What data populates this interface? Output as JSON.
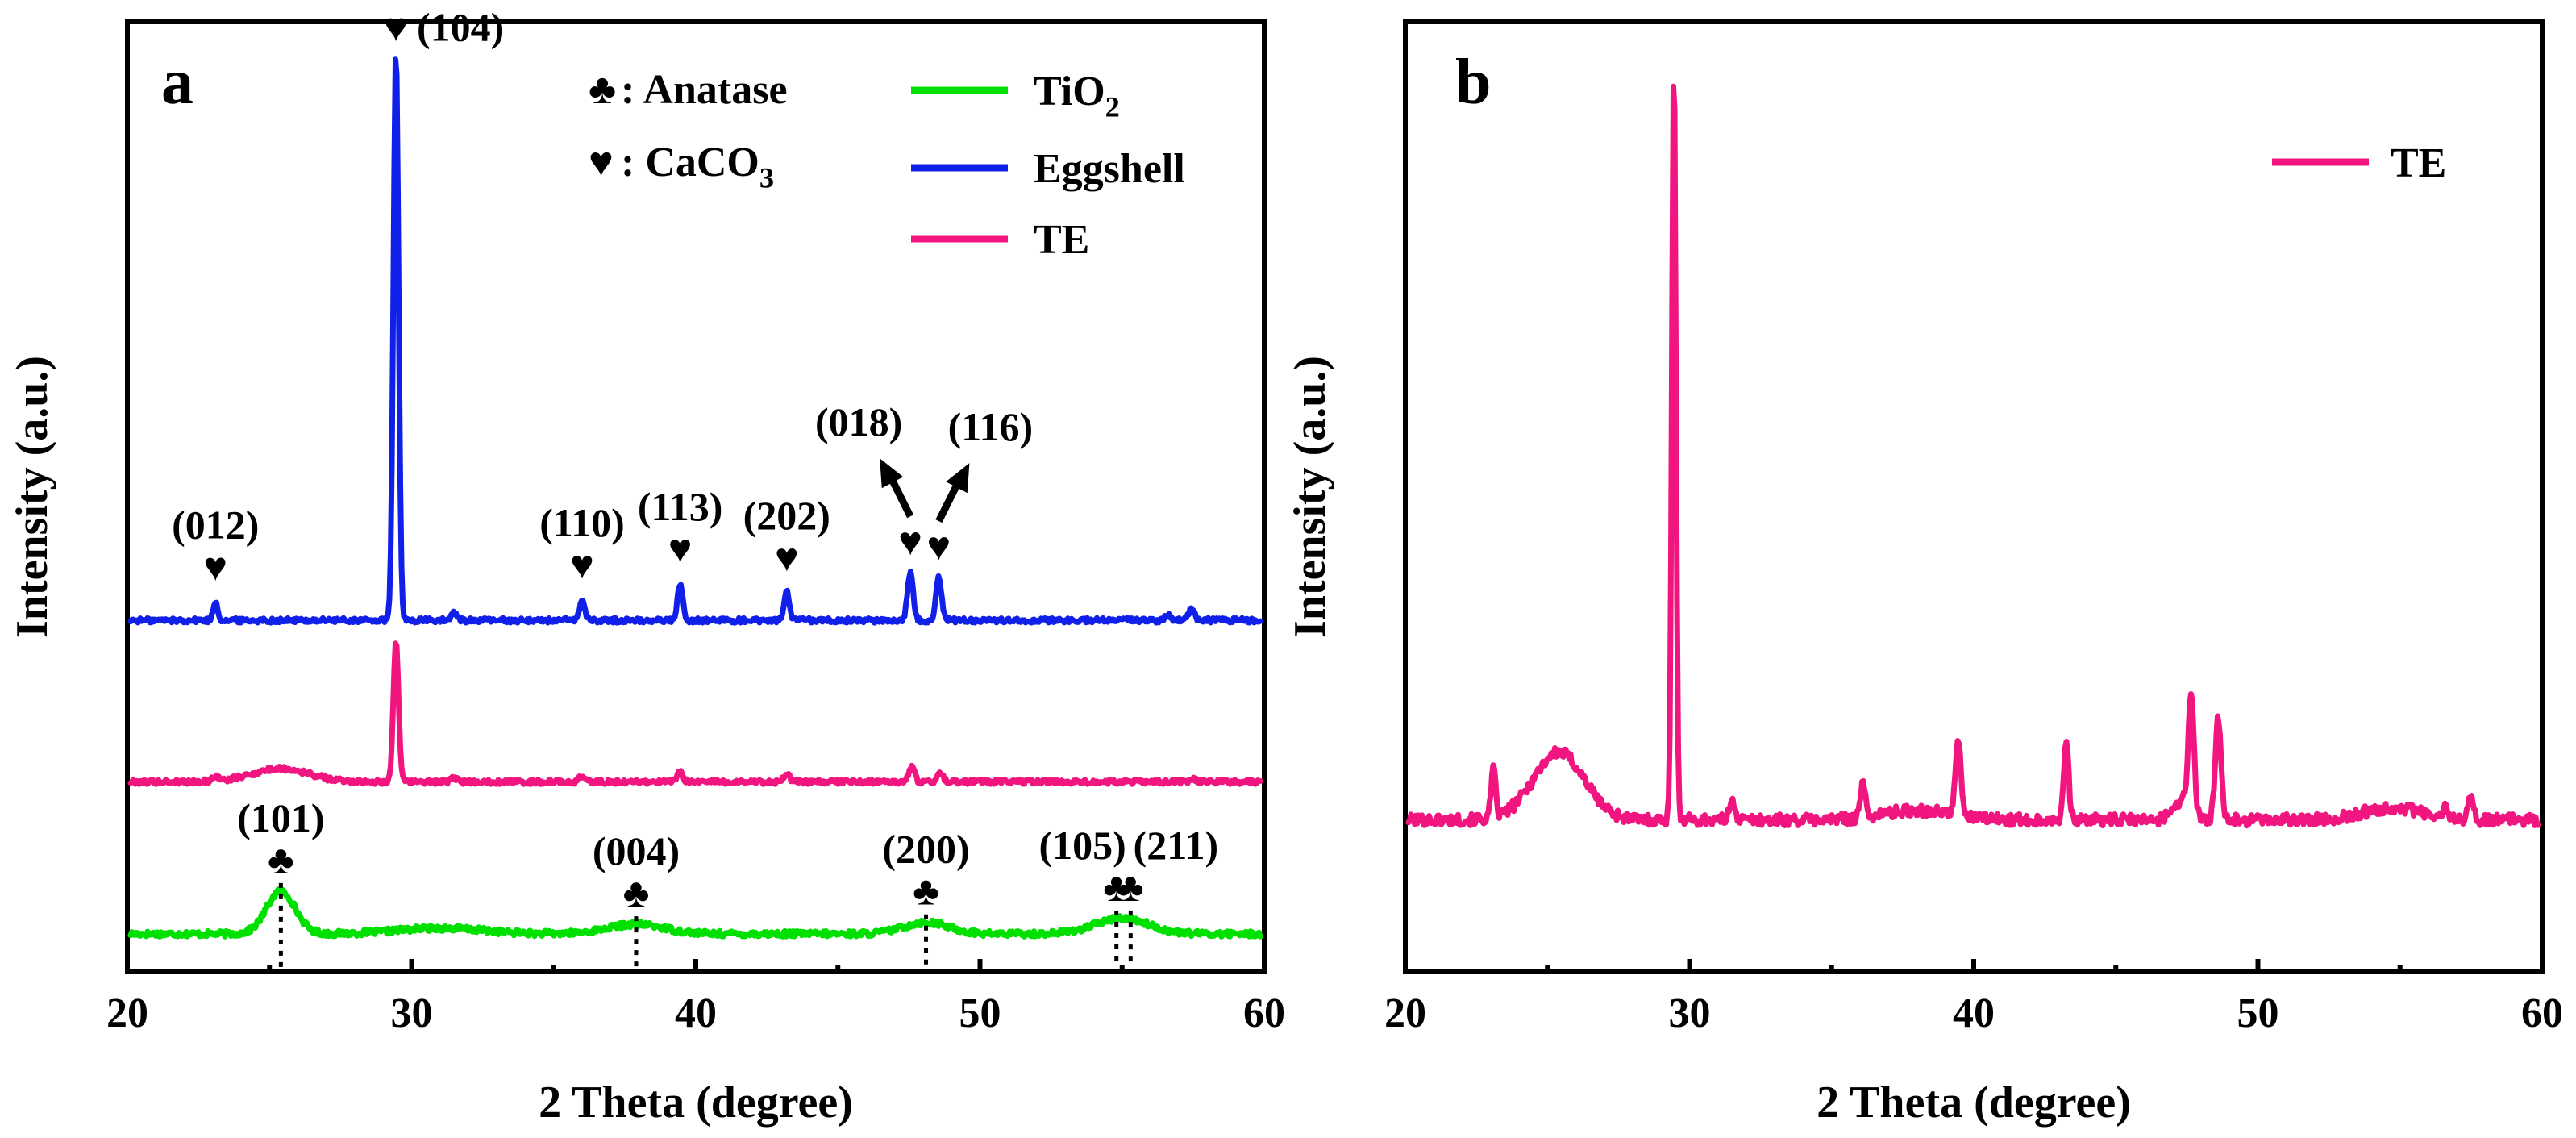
{
  "chart_data": [
    {
      "panel": "a",
      "type": "line",
      "xlabel": "2 Theta (degree)",
      "ylabel": "Intensity (a.u.)",
      "xlim": [
        20,
        60
      ],
      "xticks": [
        20,
        30,
        40,
        50,
        60
      ],
      "colors": {
        "TiO2": "#00e000",
        "Eggshell": "#1020e8",
        "TE": "#f0157f"
      },
      "legend": [
        {
          "sym": "♣",
          "text": ": Anatase"
        },
        {
          "sym": "♥",
          "text": ": CaCO",
          "sub": "3"
        }
      ],
      "series": [
        {
          "name": "TiO2",
          "label": "TiO",
          "label_sub": "2",
          "color": "#00e000",
          "baseline": 0.04,
          "noise": 0.003,
          "offset_hint": "bottom",
          "peaks": [
            {
              "x": 25.4,
              "h": 0.045,
              "w": 0.5
            },
            {
              "x": 31.0,
              "h": 0.006,
              "w": 1.5
            },
            {
              "x": 37.9,
              "h": 0.01,
              "w": 1.0
            },
            {
              "x": 48.1,
              "h": 0.012,
              "w": 0.8
            },
            {
              "x": 54.8,
              "h": 0.009,
              "w": 1.0
            },
            {
              "x": 55.2,
              "h": 0.008,
              "w": 0.8
            }
          ]
        },
        {
          "name": "Eggshell",
          "label": "Eggshell",
          "color": "#1020e8",
          "baseline": 0.37,
          "noise": 0.0025,
          "offset_hint": "top",
          "peaks": [
            {
              "x": 23.1,
              "h": 0.02,
              "w": 0.08
            },
            {
              "x": 29.45,
              "h": 0.6,
              "w": 0.09
            },
            {
              "x": 31.5,
              "h": 0.008,
              "w": 0.09
            },
            {
              "x": 36.0,
              "h": 0.022,
              "w": 0.09
            },
            {
              "x": 39.45,
              "h": 0.039,
              "w": 0.09
            },
            {
              "x": 43.2,
              "h": 0.03,
              "w": 0.09
            },
            {
              "x": 47.55,
              "h": 0.05,
              "w": 0.1
            },
            {
              "x": 48.55,
              "h": 0.045,
              "w": 0.1
            },
            {
              "x": 56.6,
              "h": 0.006,
              "w": 0.1
            },
            {
              "x": 57.45,
              "h": 0.012,
              "w": 0.1
            }
          ]
        },
        {
          "name": "TE",
          "label": "TE",
          "color": "#f0157f",
          "baseline": 0.2,
          "noise": 0.0025,
          "offset_hint": "middle",
          "peaks": [
            {
              "x": 23.1,
              "h": 0.006,
              "w": 0.09
            },
            {
              "x": 25.4,
              "h": 0.014,
              "w": 1.0
            },
            {
              "x": 29.45,
              "h": 0.15,
              "w": 0.09
            },
            {
              "x": 31.5,
              "h": 0.004,
              "w": 0.1
            },
            {
              "x": 36.0,
              "h": 0.006,
              "w": 0.1
            },
            {
              "x": 39.45,
              "h": 0.01,
              "w": 0.1
            },
            {
              "x": 43.2,
              "h": 0.008,
              "w": 0.1
            },
            {
              "x": 47.6,
              "h": 0.015,
              "w": 0.1
            },
            {
              "x": 48.6,
              "h": 0.01,
              "w": 0.1
            },
            {
              "x": 57.5,
              "h": 0.003,
              "w": 0.1
            }
          ]
        }
      ],
      "annotations": [
        {
          "text": "(101)",
          "x": 25.4,
          "series": "TiO2",
          "sym": "♣",
          "drop": true
        },
        {
          "text": "(004)",
          "x": 37.9,
          "series": "TiO2",
          "sym": "♣",
          "drop": true
        },
        {
          "text": "(200)",
          "x": 48.1,
          "series": "TiO2",
          "sym": "♣",
          "drop": true
        },
        {
          "text": "(105)",
          "x": 54.8,
          "series": "TiO2",
          "sym": "♣",
          "drop": true
        },
        {
          "text": "(211)",
          "x": 55.3,
          "series": "TiO2",
          "sym": "♣",
          "drop": true
        },
        {
          "text": "(012)",
          "x": 23.1,
          "series": "Eggshell",
          "sym": "♥"
        },
        {
          "text": "(104)",
          "x": 29.45,
          "series": "Eggshell",
          "sym": "♥"
        },
        {
          "text": "(110)",
          "x": 36.0,
          "series": "Eggshell",
          "sym": "♥"
        },
        {
          "text": "(113)",
          "x": 39.45,
          "series": "Eggshell",
          "sym": "♥"
        },
        {
          "text": "(202)",
          "x": 43.2,
          "series": "Eggshell",
          "sym": "♥"
        },
        {
          "text": "(018)",
          "x": 47.55,
          "series": "Eggshell",
          "sym": "♥",
          "arrow": true
        },
        {
          "text": "(116)",
          "x": 48.55,
          "series": "Eggshell",
          "sym": "♥",
          "arrow": true
        }
      ]
    },
    {
      "panel": "b",
      "type": "line",
      "xlabel": "2 Theta (degree)",
      "ylabel": "Intensity (a.u.)",
      "xlim": [
        20,
        60
      ],
      "xticks": [
        20,
        30,
        40,
        50,
        60
      ],
      "series": [
        {
          "name": "TE",
          "label": "TE",
          "color": "#f0157f",
          "baseline": 0.16,
          "noise": 0.006,
          "peaks": [
            {
              "x": 23.1,
              "h": 0.05,
              "w": 0.08
            },
            {
              "x": 25.4,
              "h": 0.071,
              "w": 0.9
            },
            {
              "x": 29.45,
              "h": 0.8,
              "w": 0.07
            },
            {
              "x": 31.5,
              "h": 0.024,
              "w": 0.09
            },
            {
              "x": 36.1,
              "h": 0.034,
              "w": 0.09
            },
            {
              "x": 38.0,
              "h": 0.01,
              "w": 1.2
            },
            {
              "x": 39.45,
              "h": 0.084,
              "w": 0.09
            },
            {
              "x": 43.25,
              "h": 0.08,
              "w": 0.09
            },
            {
              "x": 47.3,
              "h": 0.02,
              "w": 0.3
            },
            {
              "x": 47.65,
              "h": 0.124,
              "w": 0.1
            },
            {
              "x": 48.6,
              "h": 0.105,
              "w": 0.1
            },
            {
              "x": 54.7,
              "h": 0.013,
              "w": 1.0
            },
            {
              "x": 56.6,
              "h": 0.01,
              "w": 0.09
            },
            {
              "x": 57.5,
              "h": 0.024,
              "w": 0.09
            }
          ]
        }
      ]
    }
  ]
}
